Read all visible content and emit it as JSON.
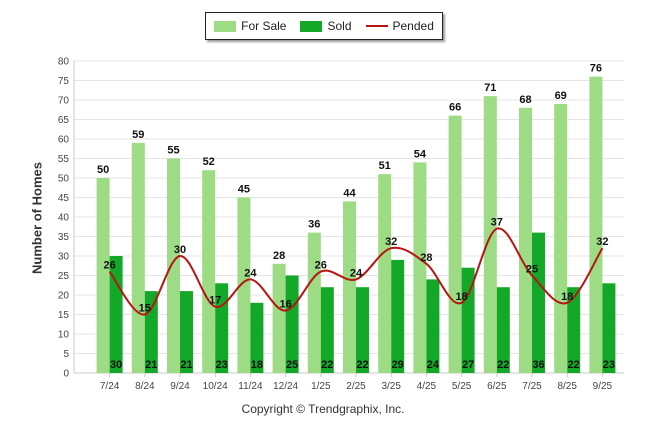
{
  "chart_data": {
    "type": "bar",
    "title": "",
    "xlabel": "",
    "ylabel": "Number of Homes",
    "ylim": [
      0,
      80
    ],
    "yticks": [
      0,
      5,
      10,
      15,
      20,
      25,
      30,
      35,
      40,
      45,
      50,
      55,
      60,
      65,
      70,
      75,
      80
    ],
    "categories": [
      "7/24",
      "8/24",
      "9/24",
      "10/24",
      "11/24",
      "12/24",
      "1/25",
      "2/25",
      "3/25",
      "4/25",
      "5/25",
      "6/25",
      "7/25",
      "8/25",
      "9/25"
    ],
    "series": [
      {
        "name": "For Sale",
        "type": "bar",
        "color": "#9ddc85",
        "values": [
          50,
          59,
          55,
          52,
          45,
          28,
          36,
          44,
          51,
          54,
          66,
          71,
          68,
          69,
          76
        ]
      },
      {
        "name": "Sold",
        "type": "bar",
        "color": "#14a828",
        "values": [
          30,
          21,
          21,
          23,
          18,
          25,
          22,
          22,
          29,
          24,
          27,
          22,
          36,
          22,
          23
        ]
      },
      {
        "name": "Pended",
        "type": "line",
        "color": "#b81414",
        "values": [
          26,
          15,
          30,
          17,
          24,
          16,
          26,
          24,
          32,
          28,
          18,
          37,
          25,
          18,
          32
        ]
      }
    ],
    "legend": "top-center",
    "grid": true
  },
  "footer": {
    "copyright": "Copyright © Trendgraphix, Inc."
  }
}
